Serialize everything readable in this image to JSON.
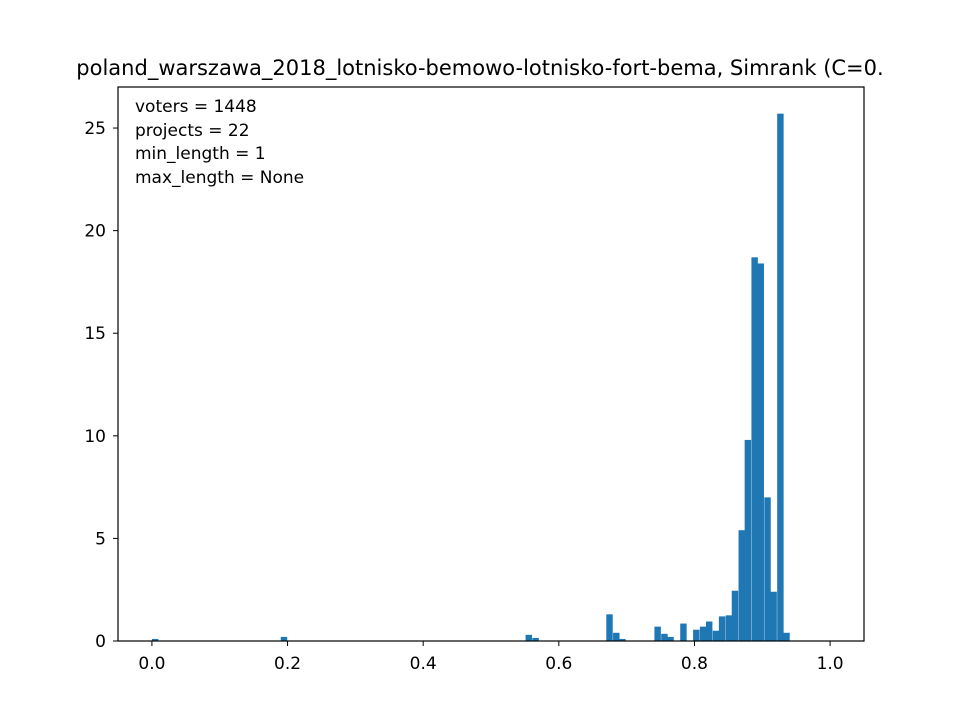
{
  "chart_data": {
    "type": "bar",
    "title": "poland_warszawa_2018_lotnisko-bemowo-lotnisko-fort-bema, Simrank (C=0.",
    "xlabel": "",
    "ylabel": "",
    "xlim": [
      -0.05,
      1.05
    ],
    "ylim": [
      0,
      27
    ],
    "xticks": [
      0.0,
      0.2,
      0.4,
      0.6,
      0.8,
      1.0
    ],
    "xtick_labels": [
      "0.0",
      "0.2",
      "0.4",
      "0.6",
      "0.8",
      "1.0"
    ],
    "yticks": [
      0,
      5,
      10,
      15,
      20,
      25
    ],
    "ytick_labels": [
      "0",
      "5",
      "10",
      "15",
      "20",
      "25"
    ],
    "grid": false,
    "bin_width": 0.0095,
    "color": "#1f77b4",
    "annotations": [
      "voters = 1448",
      "projects = 22",
      "min_length = 1",
      "max_length = None"
    ],
    "bins": [
      {
        "x": 0.0,
        "value": 0.1
      },
      {
        "x": 0.19,
        "value": 0.2
      },
      {
        "x": 0.551,
        "value": 0.3
      },
      {
        "x": 0.561,
        "value": 0.15
      },
      {
        "x": 0.67,
        "value": 1.3
      },
      {
        "x": 0.68,
        "value": 0.4
      },
      {
        "x": 0.689,
        "value": 0.1
      },
      {
        "x": 0.741,
        "value": 0.7
      },
      {
        "x": 0.751,
        "value": 0.35
      },
      {
        "x": 0.76,
        "value": 0.2
      },
      {
        "x": 0.779,
        "value": 0.85
      },
      {
        "x": 0.798,
        "value": 0.55
      },
      {
        "x": 0.808,
        "value": 0.7
      },
      {
        "x": 0.817,
        "value": 0.95
      },
      {
        "x": 0.827,
        "value": 0.5
      },
      {
        "x": 0.836,
        "value": 1.2
      },
      {
        "x": 0.846,
        "value": 1.25
      },
      {
        "x": 0.855,
        "value": 2.45
      },
      {
        "x": 0.865,
        "value": 5.4
      },
      {
        "x": 0.874,
        "value": 9.8
      },
      {
        "x": 0.884,
        "value": 18.7
      },
      {
        "x": 0.893,
        "value": 18.4
      },
      {
        "x": 0.903,
        "value": 7.0
      },
      {
        "x": 0.912,
        "value": 2.4
      },
      {
        "x": 0.922,
        "value": 25.7
      },
      {
        "x": 0.931,
        "value": 0.4
      }
    ]
  }
}
